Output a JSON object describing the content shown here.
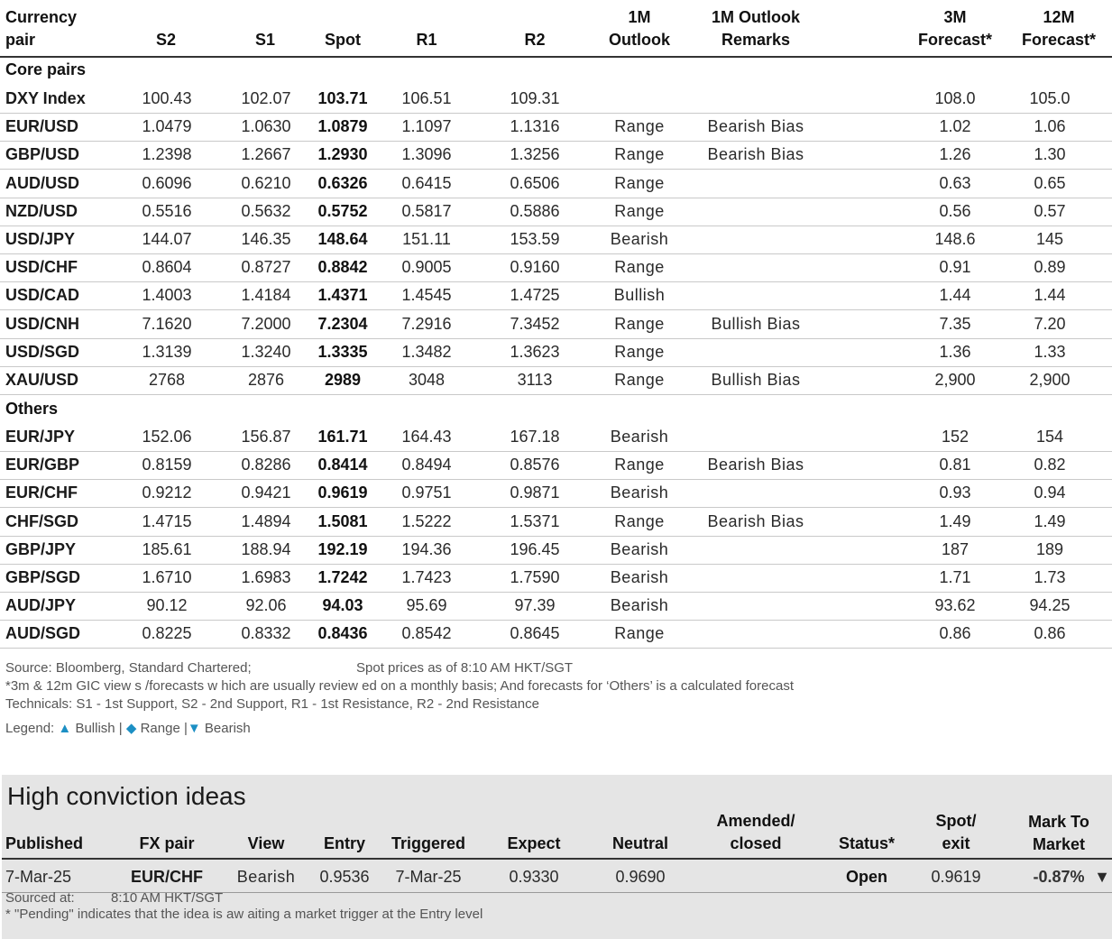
{
  "table": {
    "headers": {
      "pair": [
        "Currency",
        "pair"
      ],
      "s2": "S2",
      "s1": "S1",
      "spot": "Spot",
      "r1": "R1",
      "r2": "R2",
      "outlook": [
        "1M",
        "Outlook"
      ],
      "remarks": [
        "1M Outlook",
        "Remarks"
      ],
      "f3m": [
        "3M",
        "Forecast*"
      ],
      "f12m": [
        "12M",
        "Forecast*"
      ]
    },
    "sections": {
      "core": "Core pairs",
      "others": "Others"
    },
    "core_rows": [
      {
        "pair": "DXY Index",
        "s2": "100.43",
        "s1": "102.07",
        "spot": "103.71",
        "r1": "106.51",
        "r2": "109.31",
        "outlook": "",
        "remark": "",
        "f3m": "108.0",
        "f12m": "105.0"
      },
      {
        "pair": "EUR/USD",
        "s2": "1.0479",
        "s1": "1.0630",
        "spot": "1.0879",
        "r1": "1.1097",
        "r2": "1.1316",
        "outlook": "Range",
        "remark": "Bearish Bias",
        "f3m": "1.02",
        "f12m": "1.06"
      },
      {
        "pair": "GBP/USD",
        "s2": "1.2398",
        "s1": "1.2667",
        "spot": "1.2930",
        "r1": "1.3096",
        "r2": "1.3256",
        "outlook": "Range",
        "remark": "Bearish Bias",
        "f3m": "1.26",
        "f12m": "1.30"
      },
      {
        "pair": "AUD/USD",
        "s2": "0.6096",
        "s1": "0.6210",
        "spot": "0.6326",
        "r1": "0.6415",
        "r2": "0.6506",
        "outlook": "Range",
        "remark": "",
        "f3m": "0.63",
        "f12m": "0.65"
      },
      {
        "pair": "NZD/USD",
        "s2": "0.5516",
        "s1": "0.5632",
        "spot": "0.5752",
        "r1": "0.5817",
        "r2": "0.5886",
        "outlook": "Range",
        "remark": "",
        "f3m": "0.56",
        "f12m": "0.57"
      },
      {
        "pair": "USD/JPY",
        "s2": "144.07",
        "s1": "146.35",
        "spot": "148.64",
        "r1": "151.11",
        "r2": "153.59",
        "outlook": "Bearish",
        "remark": "",
        "f3m": "148.6",
        "f12m": "145"
      },
      {
        "pair": "USD/CHF",
        "s2": "0.8604",
        "s1": "0.8727",
        "spot": "0.8842",
        "r1": "0.9005",
        "r2": "0.9160",
        "outlook": "Range",
        "remark": "",
        "f3m": "0.91",
        "f12m": "0.89"
      },
      {
        "pair": "USD/CAD",
        "s2": "1.4003",
        "s1": "1.4184",
        "spot": "1.4371",
        "r1": "1.4545",
        "r2": "1.4725",
        "outlook": "Bullish",
        "remark": "",
        "f3m": "1.44",
        "f12m": "1.44"
      },
      {
        "pair": "USD/CNH",
        "s2": "7.1620",
        "s1": "7.2000",
        "spot": "7.2304",
        "r1": "7.2916",
        "r2": "7.3452",
        "outlook": "Range",
        "remark": "Bullish Bias",
        "f3m": "7.35",
        "f12m": "7.20"
      },
      {
        "pair": "USD/SGD",
        "s2": "1.3139",
        "s1": "1.3240",
        "spot": "1.3335",
        "r1": "1.3482",
        "r2": "1.3623",
        "outlook": "Range",
        "remark": "",
        "f3m": "1.36",
        "f12m": "1.33"
      },
      {
        "pair": "XAU/USD",
        "s2": "2768",
        "s1": "2876",
        "spot": "2989",
        "r1": "3048",
        "r2": "3113",
        "outlook": "Range",
        "remark": "Bullish Bias",
        "f3m": "2,900",
        "f12m": "2,900"
      }
    ],
    "other_rows": [
      {
        "pair": "EUR/JPY",
        "s2": "152.06",
        "s1": "156.87",
        "spot": "161.71",
        "r1": "164.43",
        "r2": "167.18",
        "outlook": "Bearish",
        "remark": "",
        "f3m": "152",
        "f12m": "154"
      },
      {
        "pair": "EUR/GBP",
        "s2": "0.8159",
        "s1": "0.8286",
        "spot": "0.8414",
        "r1": "0.8494",
        "r2": "0.8576",
        "outlook": "Range",
        "remark": "Bearish Bias",
        "f3m": "0.81",
        "f12m": "0.82"
      },
      {
        "pair": "EUR/CHF",
        "s2": "0.9212",
        "s1": "0.9421",
        "spot": "0.9619",
        "r1": "0.9751",
        "r2": "0.9871",
        "outlook": "Bearish",
        "remark": "",
        "f3m": "0.93",
        "f12m": "0.94"
      },
      {
        "pair": "CHF/SGD",
        "s2": "1.4715",
        "s1": "1.4894",
        "spot": "1.5081",
        "r1": "1.5222",
        "r2": "1.5371",
        "outlook": "Range",
        "remark": "Bearish Bias",
        "f3m": "1.49",
        "f12m": "1.49"
      },
      {
        "pair": "GBP/JPY",
        "s2": "185.61",
        "s1": "188.94",
        "spot": "192.19",
        "r1": "194.36",
        "r2": "196.45",
        "outlook": "Bearish",
        "remark": "",
        "f3m": "187",
        "f12m": "189"
      },
      {
        "pair": "GBP/SGD",
        "s2": "1.6710",
        "s1": "1.6983",
        "spot": "1.7242",
        "r1": "1.7423",
        "r2": "1.7590",
        "outlook": "Bearish",
        "remark": "",
        "f3m": "1.71",
        "f12m": "1.73"
      },
      {
        "pair": "AUD/JPY",
        "s2": "90.12",
        "s1": "92.06",
        "spot": "94.03",
        "r1": "95.69",
        "r2": "97.39",
        "outlook": "Bearish",
        "remark": "",
        "f3m": "93.62",
        "f12m": "94.25"
      },
      {
        "pair": "AUD/SGD",
        "s2": "0.8225",
        "s1": "0.8332",
        "spot": "0.8436",
        "r1": "0.8542",
        "r2": "0.8645",
        "outlook": "Range",
        "remark": "",
        "f3m": "0.86",
        "f12m": "0.86"
      }
    ],
    "outlook_colors": {
      "Range": "#e8b020",
      "Bearish": "#e00000",
      "Bullish": "#2f8a00"
    }
  },
  "notes": {
    "source": "Source: Bloomberg, Standard Chartered;",
    "spot_time": "Spot prices as of  8:10 AM HKT/SGT",
    "forecast_note": "*3m & 12m GIC view s /forecasts w hich are usually review ed on a monthly basis; And forecasts for ‘Others’ is a calculated forecast",
    "technicals": "Technicals: S1 - 1st Support, S2 - 2nd Support, R1 - 1st Resistance, R2 - 2nd Resistance",
    "legend_label": "Legend:",
    "legend_bullish": "Bullish",
    "legend_range": "Range",
    "legend_bearish": "Bearish",
    "legend_sep": "|"
  },
  "ideas": {
    "title": "High conviction ideas",
    "headers": {
      "published": "Published",
      "pair": "FX pair",
      "view": "View",
      "entry": "Entry",
      "triggered": "Triggered",
      "expect": "Expect",
      "neutral": "Neutral",
      "amended": [
        "Amended/",
        "closed"
      ],
      "status": "Status*",
      "spot": [
        "Spot/",
        "exit"
      ],
      "mtm": [
        "Mark To",
        "Market"
      ]
    },
    "row": {
      "published": "7-Mar-25",
      "pair": "EUR/CHF",
      "view": "Bearish",
      "entry": "0.9536",
      "triggered": "7-Mar-25",
      "expect": "0.9330",
      "neutral": "0.9690",
      "amended": "",
      "status": "Open",
      "spot": "0.9619",
      "mtm": "-0.87%"
    },
    "sourced_label": "Sourced at:",
    "sourced_time": "8:10 AM HKT/SGT",
    "pending_note": "* \"Pending\" indicates that the idea is aw aiting a market trigger at the Entry level"
  }
}
